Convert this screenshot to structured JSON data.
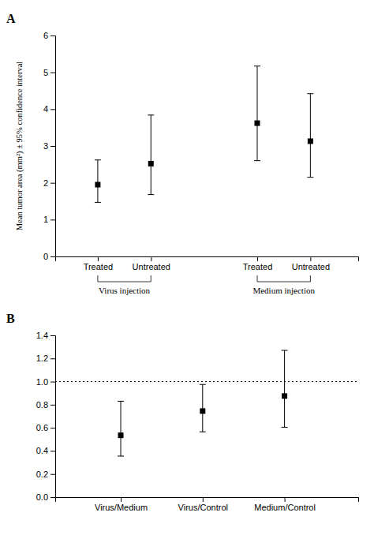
{
  "chart_data": [
    {
      "type": "errorbar",
      "title": "A",
      "ylabel": "Mean tumor area (mm²) ± 95% confidence interval",
      "categories": [
        "Treated",
        "Untreated",
        "Treated",
        "Untreated"
      ],
      "groups": [
        "Virus injection",
        "Medium injection"
      ],
      "values": [
        1.95,
        2.52,
        3.62,
        3.13
      ],
      "ci_low": [
        1.47,
        1.68,
        2.6,
        2.15
      ],
      "ci_high": [
        2.62,
        3.84,
        5.17,
        4.42
      ],
      "ylim": [
        0,
        6
      ],
      "yticks": [
        0,
        1,
        2,
        3,
        4,
        5,
        6
      ],
      "color": "black",
      "marker": "square",
      "grid": false
    },
    {
      "type": "errorbar",
      "title": "B",
      "categories": [
        "Virus/Medium",
        "Virus/Control",
        "Medium/Control"
      ],
      "values": [
        0.535,
        0.745,
        0.875
      ],
      "ci_low": [
        0.355,
        0.565,
        0.605
      ],
      "ci_high": [
        0.83,
        0.975,
        1.27
      ],
      "reference_line": 1.0,
      "ylim": [
        0,
        1.4
      ],
      "yticks": [
        {
          "value": 0,
          "label": "0.0"
        },
        0.2,
        0.4,
        0.6,
        0.8,
        {
          "value": 1.0,
          "label": "1.0"
        },
        1.2,
        1.4
      ],
      "color": "black",
      "marker": "square",
      "grid": false
    }
  ]
}
